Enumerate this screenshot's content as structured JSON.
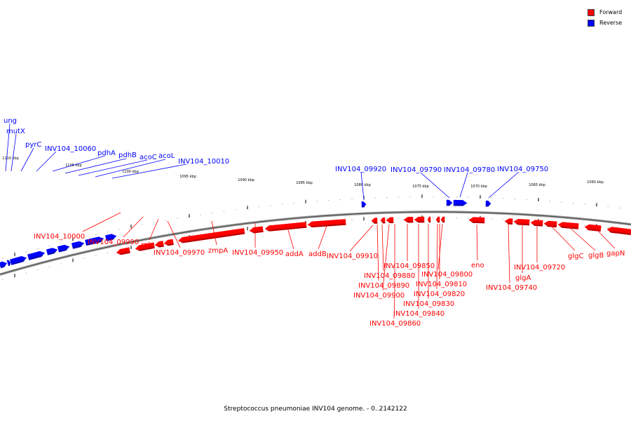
{
  "legend": {
    "forward": {
      "label": "Forward",
      "color": "#ff0000"
    },
    "reverse": {
      "label": "Reverse",
      "color": "#0000ff"
    }
  },
  "caption": "Streptococcus pneumoniae INV104 genome. - 0..2142122",
  "scale_labels": [
    "1110 kbp",
    "1105 kbp",
    "1100 kbp",
    "1095 kbp",
    "1090 kbp",
    "1085 kbp",
    "1080 kbp",
    "1075 kbp",
    "1070 kbp",
    "1065 kbp",
    "1060 kbp"
  ],
  "reverse_genes": [
    "ung",
    "mutX",
    "pyrC",
    "INV104_10060",
    "pdhA",
    "pdhB",
    "acoC",
    "acoL",
    "INV104_10010",
    "INV104_09920",
    "INV104_09790",
    "INV104_09780",
    "INV104_09750"
  ],
  "forward_genes": [
    "INV104_10000",
    "INV104_09990",
    "rnh",
    "INV104_09970",
    "zmpA",
    "INV104_09950",
    "addA",
    "addB",
    "INV104_09910",
    "INV104_09880",
    "INV104_09890",
    "INV104_09900",
    "INV104_09850",
    "INV104_09860",
    "INV104_09800",
    "INV104_09810",
    "INV104_09820",
    "INV104_09830",
    "INV104_09840",
    "eno",
    "INV104_09720",
    "glgA",
    "INV104_09740",
    "glgC",
    "glgB",
    "gapN"
  ]
}
